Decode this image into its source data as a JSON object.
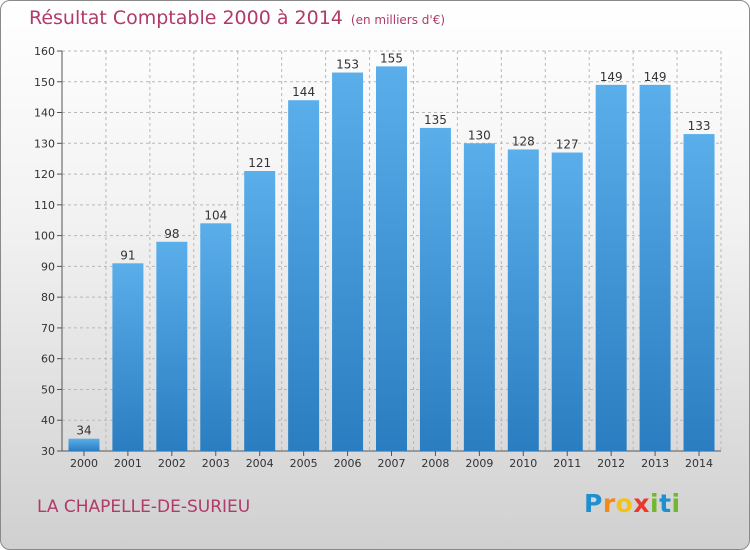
{
  "chart_data": {
    "type": "bar",
    "title": "Résultat Comptable 2000 à 2014",
    "subtitle": "(en milliers d'€)",
    "categories": [
      "2000",
      "2001",
      "2002",
      "2003",
      "2004",
      "2005",
      "2006",
      "2007",
      "2008",
      "2009",
      "2010",
      "2011",
      "2012",
      "2013",
      "2014"
    ],
    "values": [
      34,
      91,
      98,
      104,
      121,
      144,
      153,
      155,
      135,
      130,
      128,
      127,
      149,
      149,
      133
    ],
    "ylim": [
      30,
      160
    ],
    "yticks": [
      30,
      40,
      50,
      60,
      70,
      80,
      90,
      100,
      110,
      120,
      130,
      140,
      150,
      160
    ],
    "xlabel": "",
    "ylabel": "",
    "grid": true,
    "bar_color": "#3f95d9"
  },
  "footer": {
    "commune": "LA CHAPELLE-DE-SURIEU",
    "logo": "Proxiti"
  }
}
